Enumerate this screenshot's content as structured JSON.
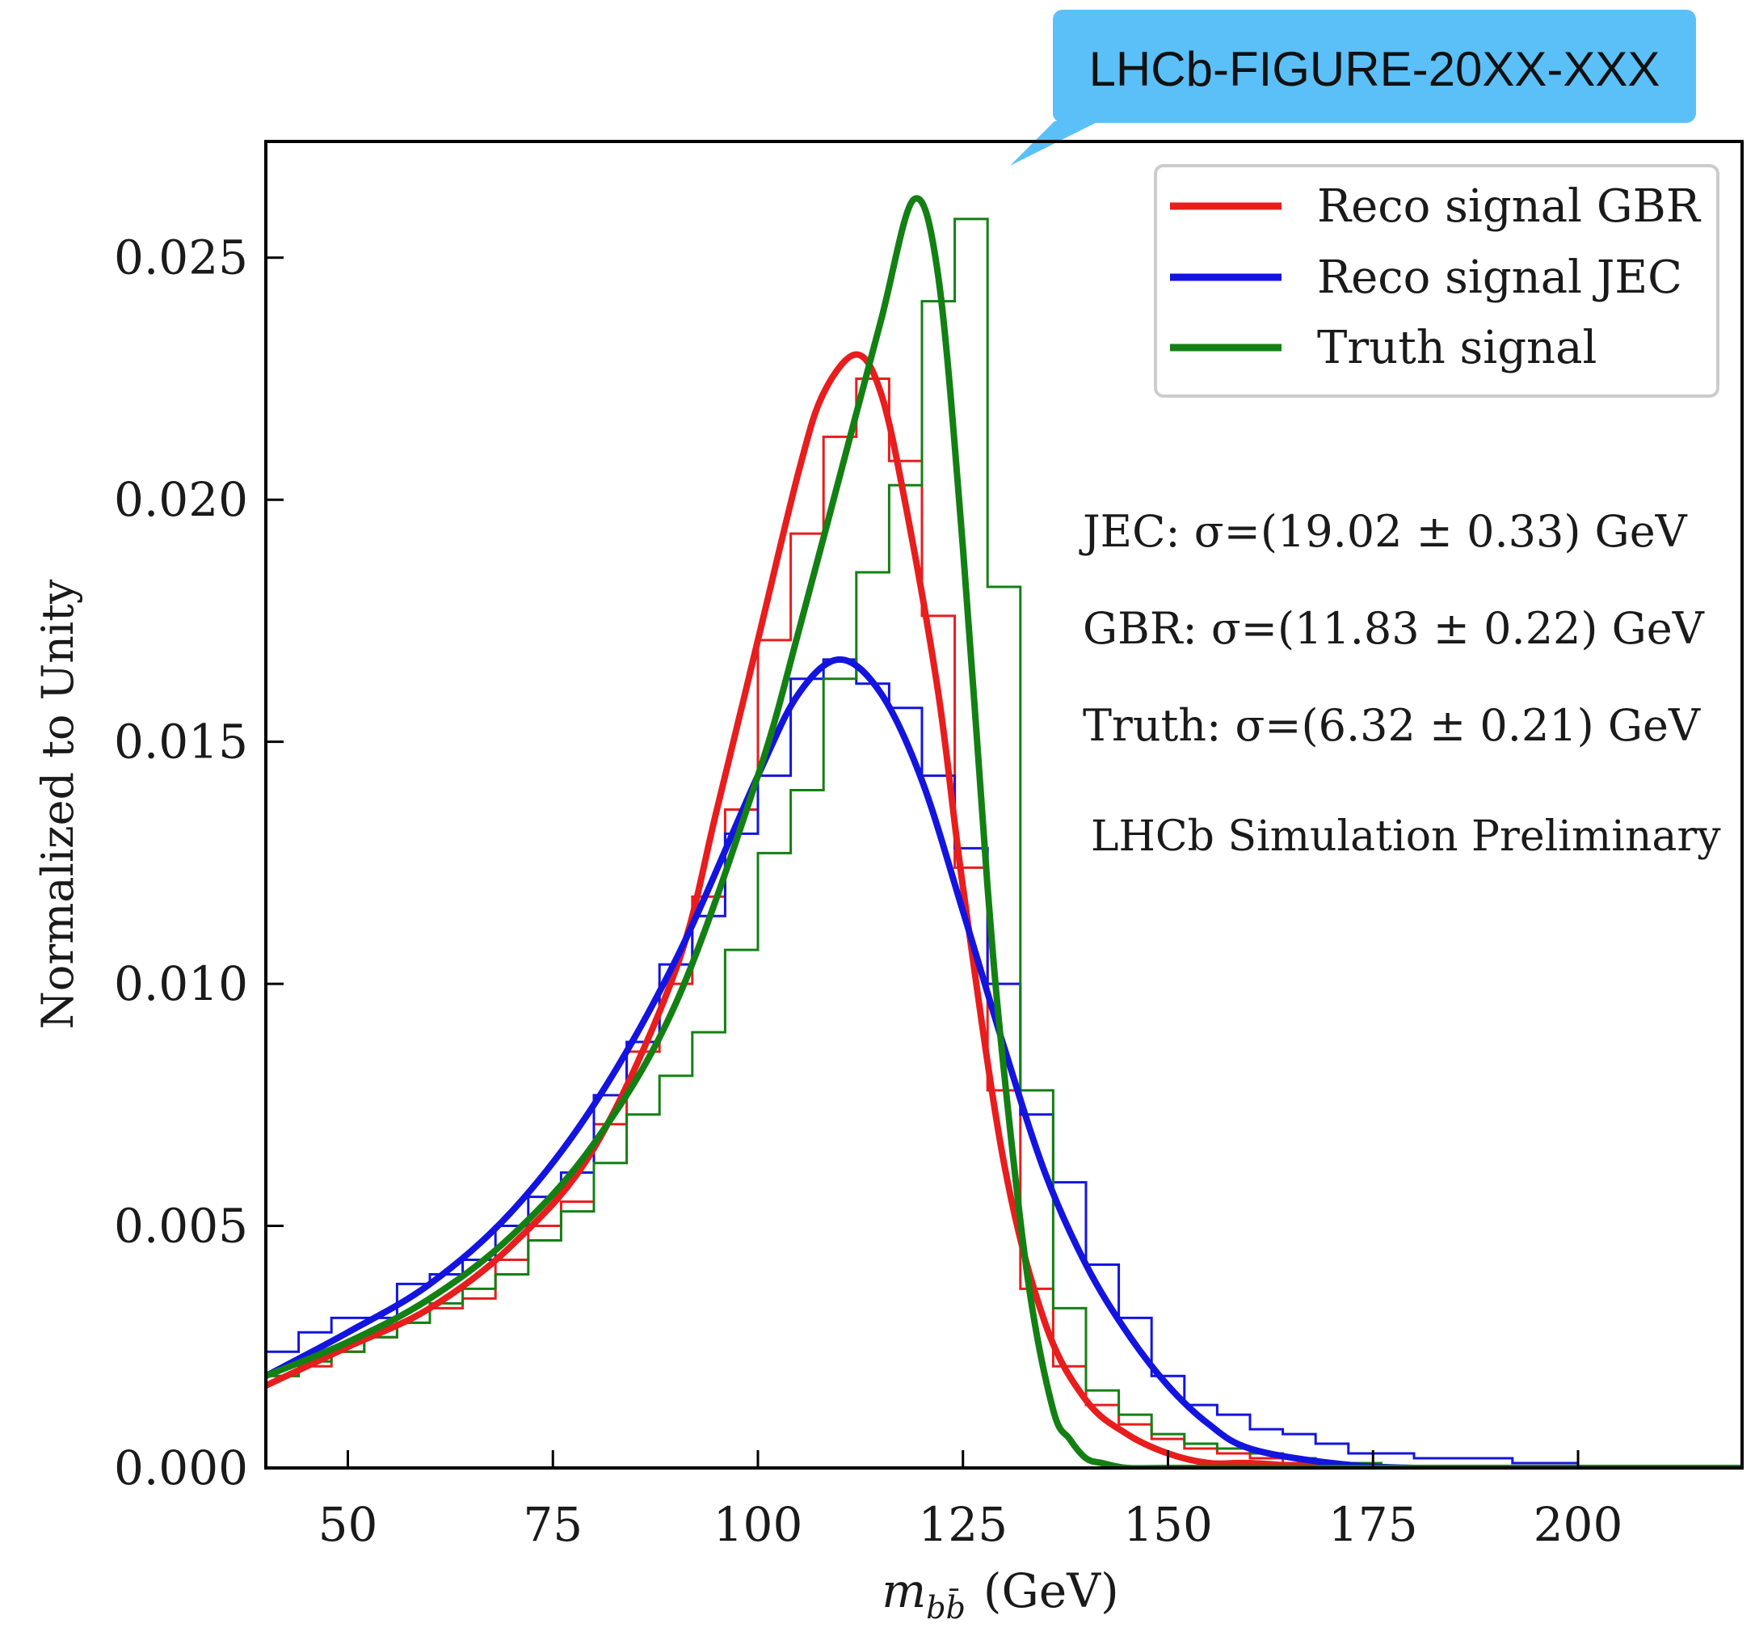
{
  "tag": {
    "text": "LHCb-FIGURE-20XX-XXX",
    "color": "#5bc0f8"
  },
  "chart_data": {
    "type": "line",
    "xlabel": "m_{b̄b} (GeV)",
    "xlabel_main": "m",
    "xlabel_sub": "bb̄",
    "xlabel_unit": "(GeV)",
    "ylabel": "Normalized to Unity",
    "xlim": [
      40,
      220
    ],
    "ylim": [
      0,
      0.0274
    ],
    "grid": false,
    "x_ticks": [
      50,
      75,
      100,
      125,
      150,
      175,
      200
    ],
    "x_tick_labels": [
      "50",
      "75",
      "100",
      "125",
      "150",
      "175",
      "200"
    ],
    "y_ticks": [
      0,
      0.005,
      0.01,
      0.015,
      0.02,
      0.025
    ],
    "y_tick_labels": [
      "0.000",
      "0.005",
      "0.010",
      "0.015",
      "0.020",
      "0.025"
    ],
    "bin_width": 4,
    "legend": {
      "position": "top-right",
      "entries": [
        {
          "label": "Reco signal GBR",
          "color": "#e81d1d"
        },
        {
          "label": "Reco signal JEC",
          "color": "#1414e0"
        },
        {
          "label": "Truth signal",
          "color": "#138013"
        }
      ]
    },
    "annotations": [
      "JEC: σ=(19.02 ± 0.33) GeV",
      "GBR: σ=(11.83 ± 0.22) GeV",
      "Truth: σ=(6.32 ± 0.21) GeV",
      "LHCb Simulation Preliminary"
    ],
    "series": [
      {
        "name": "Reco signal GBR",
        "color": "#e81d1d",
        "histogram": {
          "bin_edges": [
            40,
            44,
            48,
            52,
            56,
            60,
            64,
            68,
            72,
            76,
            80,
            84,
            88,
            92,
            96,
            100,
            104,
            108,
            112,
            116,
            120,
            124,
            128,
            132,
            136,
            140,
            144,
            148,
            152,
            156,
            160,
            164,
            168,
            172,
            176,
            180,
            184,
            188,
            192,
            196,
            200,
            220
          ],
          "values": [
            0.0019,
            0.0021,
            0.0024,
            0.0027,
            0.003,
            0.0033,
            0.0035,
            0.0043,
            0.005,
            0.0055,
            0.0071,
            0.0086,
            0.01,
            0.0118,
            0.0136,
            0.0171,
            0.0193,
            0.0213,
            0.0225,
            0.0208,
            0.0176,
            0.0124,
            0.0078,
            0.0037,
            0.0021,
            0.0013,
            0.0009,
            0.0006,
            0.0004,
            0.0003,
            0.0002,
            0.0001,
            0.0001,
            0.0001,
            0.0,
            0.0,
            0.0,
            0.0,
            0.0,
            0.0,
            0.0
          ]
        },
        "fit": {
          "x": [
            40,
            50,
            60,
            70,
            80,
            90,
            95,
            100,
            105,
            108,
            112,
            115,
            118,
            122,
            125,
            130,
            135,
            140,
            145,
            150,
            155,
            160,
            170,
            180,
            200,
            220
          ],
          "y": [
            0.0017,
            0.0025,
            0.0033,
            0.0046,
            0.0066,
            0.0103,
            0.0136,
            0.0171,
            0.0206,
            0.0222,
            0.023,
            0.0222,
            0.0199,
            0.016,
            0.012,
            0.0063,
            0.003,
            0.0014,
            0.0007,
            0.0003,
            0.0001,
            0.0001,
            0.0,
            0.0,
            0.0,
            0.0
          ]
        }
      },
      {
        "name": "Reco signal JEC",
        "color": "#1414e0",
        "histogram": {
          "bin_edges": [
            40,
            44,
            48,
            52,
            56,
            60,
            64,
            68,
            72,
            76,
            80,
            84,
            88,
            92,
            96,
            100,
            104,
            108,
            112,
            116,
            120,
            124,
            128,
            132,
            136,
            140,
            144,
            148,
            152,
            156,
            160,
            164,
            168,
            172,
            176,
            180,
            184,
            188,
            192,
            196,
            200,
            220
          ],
          "values": [
            0.0024,
            0.0028,
            0.0031,
            0.0031,
            0.0038,
            0.004,
            0.0043,
            0.005,
            0.0056,
            0.0061,
            0.0077,
            0.0088,
            0.0104,
            0.0114,
            0.0131,
            0.0143,
            0.0163,
            0.0167,
            0.0162,
            0.0157,
            0.0143,
            0.0128,
            0.01,
            0.0073,
            0.0059,
            0.0042,
            0.0031,
            0.0019,
            0.0013,
            0.0011,
            0.0008,
            0.0007,
            0.0005,
            0.0003,
            0.0003,
            0.0002,
            0.0002,
            0.0002,
            0.0001,
            0.0001,
            0.0
          ]
        },
        "fit": {
          "x": [
            40,
            50,
            60,
            70,
            80,
            90,
            100,
            105,
            110,
            115,
            120,
            125,
            130,
            135,
            140,
            145,
            150,
            155,
            160,
            170,
            180,
            200,
            220
          ],
          "y": [
            0.0019,
            0.0028,
            0.0038,
            0.0053,
            0.0075,
            0.0105,
            0.0143,
            0.016,
            0.0167,
            0.016,
            0.0142,
            0.0115,
            0.0087,
            0.0061,
            0.0042,
            0.0028,
            0.0017,
            0.0009,
            0.0004,
            0.0001,
            0.0,
            0.0,
            0.0
          ]
        }
      },
      {
        "name": "Truth signal",
        "color": "#138013",
        "histogram": {
          "bin_edges": [
            40,
            44,
            48,
            52,
            56,
            60,
            64,
            68,
            72,
            76,
            80,
            84,
            88,
            92,
            96,
            100,
            104,
            108,
            112,
            116,
            120,
            124,
            128,
            132,
            136,
            140,
            144,
            148,
            152,
            156,
            160,
            164,
            168,
            172,
            176,
            180,
            184,
            188,
            192,
            196,
            200,
            220
          ],
          "values": [
            0.0019,
            0.0022,
            0.0024,
            0.0027,
            0.003,
            0.0034,
            0.0037,
            0.004,
            0.0047,
            0.0053,
            0.0063,
            0.0073,
            0.0081,
            0.009,
            0.0107,
            0.0127,
            0.014,
            0.0163,
            0.0185,
            0.0203,
            0.0241,
            0.0258,
            0.0182,
            0.0078,
            0.0033,
            0.0016,
            0.0011,
            0.0007,
            0.0005,
            0.0004,
            0.0003,
            0.0002,
            0.0001,
            0.0001,
            0.0,
            0.0,
            0.0,
            0.0,
            0.0,
            0.0,
            0.0
          ]
        },
        "fit": {
          "x": [
            40,
            50,
            60,
            70,
            80,
            90,
            100,
            105,
            110,
            115,
            119,
            122,
            125,
            128,
            130,
            133,
            136,
            138,
            140,
            142,
            145,
            150,
            160,
            200,
            220
          ],
          "y": [
            0.0019,
            0.0026,
            0.0035,
            0.0048,
            0.0067,
            0.0096,
            0.0143,
            0.0173,
            0.0205,
            0.0237,
            0.0262,
            0.0246,
            0.019,
            0.012,
            0.0082,
            0.0038,
            0.0012,
            0.0006,
            0.0002,
            0.0001,
            0.0,
            0.0,
            0.0,
            0.0,
            0.0
          ]
        }
      }
    ]
  }
}
